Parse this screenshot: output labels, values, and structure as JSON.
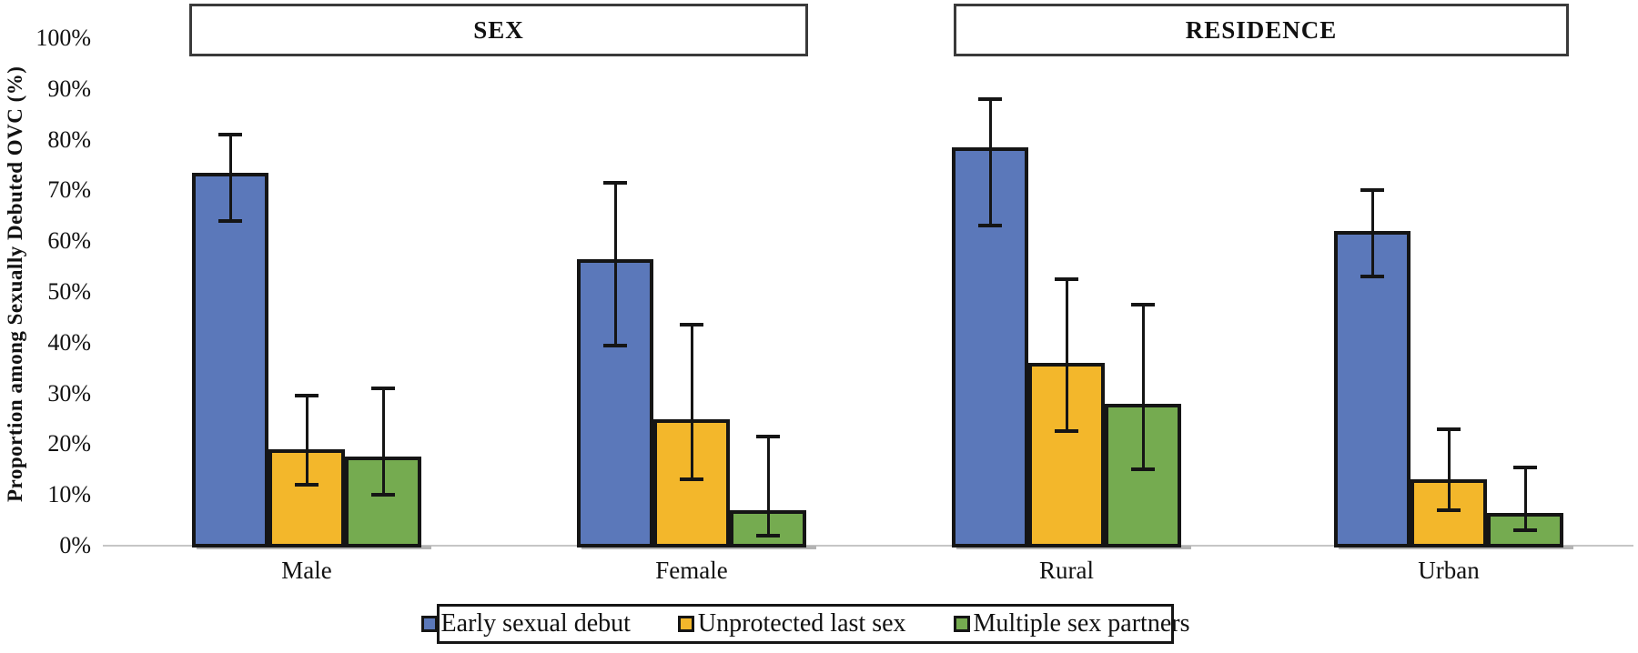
{
  "chart_data": {
    "type": "bar",
    "title": "",
    "ylabel": "Proportion among Sexually Debuted OVC (%)",
    "xlabel": "",
    "ylim": [
      0,
      100
    ],
    "grid": "off",
    "legend_position": "bottom",
    "error_bars": "whiskers (confidence intervals)",
    "yticks": [
      {
        "value": 0,
        "label": "0%"
      },
      {
        "value": 10,
        "label": "10%"
      },
      {
        "value": 20,
        "label": "20%"
      },
      {
        "value": 30,
        "label": "30%"
      },
      {
        "value": 40,
        "label": "40%"
      },
      {
        "value": 50,
        "label": "50%"
      },
      {
        "value": 60,
        "label": "60%"
      },
      {
        "value": 70,
        "label": "70%"
      },
      {
        "value": 80,
        "label": "80%"
      },
      {
        "value": 90,
        "label": "90%"
      },
      {
        "value": 100,
        "label": "100%"
      }
    ],
    "sections": [
      {
        "label": "SEX",
        "categories": [
          "Male",
          "Female"
        ]
      },
      {
        "label": "RESIDENCE",
        "categories": [
          "Rural",
          "Urban"
        ]
      }
    ],
    "series": [
      {
        "name": "Early sexual debut",
        "color": "#5B78BA"
      },
      {
        "name": "Unprotected last sex",
        "color": "#F3B72B"
      },
      {
        "name": "Multiple sex partners",
        "color": "#75AB50"
      }
    ],
    "groups": [
      {
        "category": "Male",
        "section": "SEX",
        "bars": [
          {
            "series": "Early sexual debut",
            "value": 73.5,
            "ci_low": 64.0,
            "ci_high": 81.0
          },
          {
            "series": "Unprotected last sex",
            "value": 19.0,
            "ci_low": 12.0,
            "ci_high": 29.5
          },
          {
            "series": "Multiple sex partners",
            "value": 17.5,
            "ci_low": 10.0,
            "ci_high": 31.0
          }
        ]
      },
      {
        "category": "Female",
        "section": "SEX",
        "bars": [
          {
            "series": "Early sexual debut",
            "value": 56.5,
            "ci_low": 39.5,
            "ci_high": 71.5
          },
          {
            "series": "Unprotected last sex",
            "value": 25.0,
            "ci_low": 13.0,
            "ci_high": 43.5
          },
          {
            "series": "Multiple sex partners",
            "value": 7.0,
            "ci_low": 2.0,
            "ci_high": 21.5
          }
        ]
      },
      {
        "category": "Rural",
        "section": "RESIDENCE",
        "bars": [
          {
            "series": "Early sexual debut",
            "value": 78.5,
            "ci_low": 63.0,
            "ci_high": 88.0
          },
          {
            "series": "Unprotected last sex",
            "value": 36.0,
            "ci_low": 22.5,
            "ci_high": 52.5
          },
          {
            "series": "Multiple sex partners",
            "value": 28.0,
            "ci_low": 15.0,
            "ci_high": 47.5
          }
        ]
      },
      {
        "category": "Urban",
        "section": "RESIDENCE",
        "bars": [
          {
            "series": "Early sexual debut",
            "value": 62.0,
            "ci_low": 53.0,
            "ci_high": 70.0
          },
          {
            "series": "Unprotected last sex",
            "value": 13.0,
            "ci_low": 7.0,
            "ci_high": 23.0
          },
          {
            "series": "Multiple sex partners",
            "value": 6.5,
            "ci_low": 3.0,
            "ci_high": 15.5
          }
        ]
      }
    ]
  }
}
